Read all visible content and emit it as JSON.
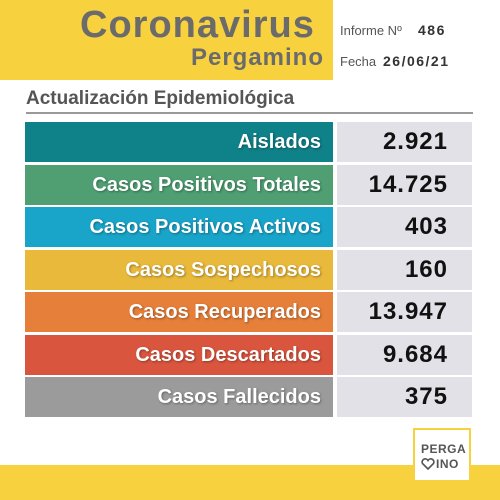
{
  "header": {
    "title": "Coronavirus",
    "subtitle": "Pergamino",
    "report_label": "Informe Nº",
    "report_number": "486",
    "date_label": "Fecha",
    "date": "26/06/21"
  },
  "section_title": "Actualización Epidemiológica",
  "rows": [
    {
      "label": "Aislados",
      "value": "2.921"
    },
    {
      "label": "Casos Positivos Totales",
      "value": "14.725"
    },
    {
      "label": "Casos Positivos Activos",
      "value": "403"
    },
    {
      "label": "Casos Sospechosos",
      "value": "160"
    },
    {
      "label": "Casos Recuperados",
      "value": "13.947"
    },
    {
      "label": "Casos Descartados",
      "value": "9.684"
    },
    {
      "label": "Casos Fallecidos",
      "value": "375"
    }
  ],
  "logo": {
    "line1": "PERGA",
    "line2": "INO"
  }
}
